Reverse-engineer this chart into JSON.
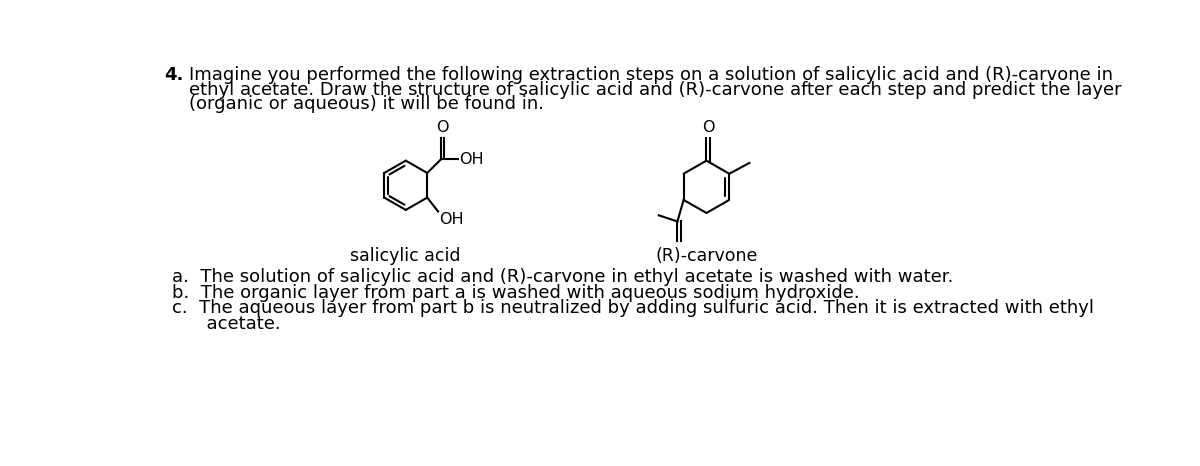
{
  "title_number": "4.",
  "title_text_line1": "Imagine you performed the following extraction steps on a solution of salicylic acid and (R)-carvone in",
  "title_text_line2": "ethyl acetate. Draw the structure of salicylic acid and (R)-carvone after each step and predict the layer",
  "title_text_line3": "(organic or aqueous) it will be found in.",
  "label_salicylic": "salicylic acid",
  "label_carvone": "(R)-carvone",
  "item_a": "a.  The solution of salicylic acid and (R)-carvone in ethyl acetate is washed with water.",
  "item_b": "b.  The organic layer from part a is washed with aqueous sodium hydroxide.",
  "item_c1": "c.  The aqueous layer from part b is neutralized by adding sulfuric acid. Then it is extracted with ethyl",
  "item_c2": "      acetate.",
  "bg_color": "#ffffff",
  "text_color": "#000000",
  "font_size_title": 13.0,
  "font_size_label": 12.5,
  "font_size_items": 13.0,
  "font_size_atom": 11.5
}
